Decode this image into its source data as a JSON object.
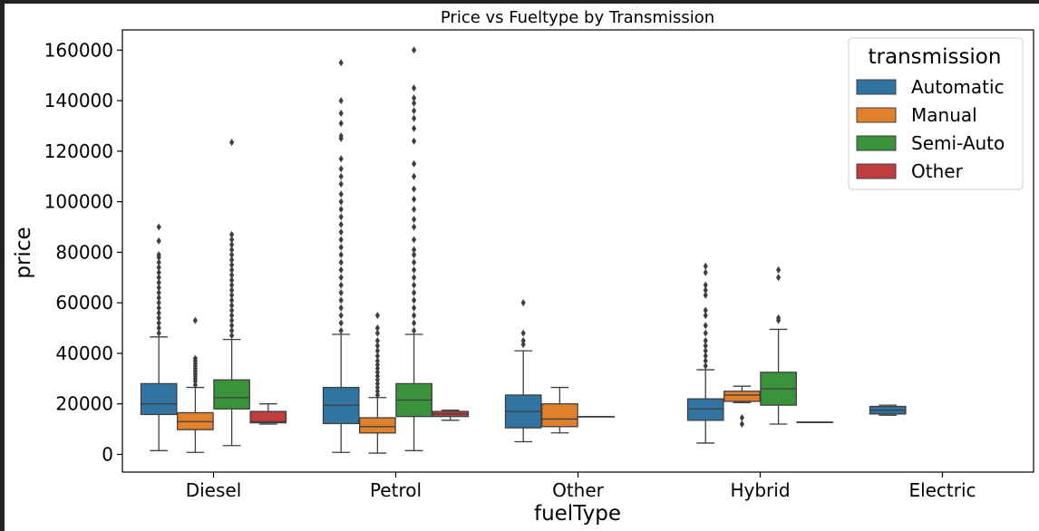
{
  "chart_data": {
    "type": "box",
    "title": "Price vs Fueltype by Transmission",
    "xlabel": "fuelType",
    "ylabel": "price",
    "ylim": [
      -7000,
      168000
    ],
    "yticks": [
      0,
      20000,
      40000,
      60000,
      80000,
      100000,
      120000,
      140000,
      160000
    ],
    "categories": [
      "Diesel",
      "Petrol",
      "Other",
      "Hybrid",
      "Electric"
    ],
    "legend": {
      "title": "transmission",
      "position": "top-right"
    },
    "series": [
      {
        "name": "Automatic",
        "color": "#3274a1",
        "boxes": [
          {
            "q1": 15800,
            "median": 20000,
            "q3": 28000,
            "whislo": 1500,
            "whishi": 46500,
            "outliers": [
              48000,
              50000,
              52000,
              54000,
              56000,
              58000,
              60000,
              62000,
              64000,
              66000,
              68000,
              70000,
              72000,
              74000,
              76000,
              78000,
              79000,
              84500,
              90000
            ]
          },
          {
            "q1": 12200,
            "median": 19500,
            "q3": 26500,
            "whislo": 800,
            "whishi": 47500,
            "outliers": [
              49000,
              52000,
              55000,
              58000,
              61000,
              64000,
              67000,
              70000,
              73000,
              76000,
              79000,
              82000,
              85000,
              88000,
              91000,
              94000,
              97000,
              100000,
              103000,
              107000,
              110000,
              113000,
              117000,
              125000,
              126000,
              131000,
              135000,
              140000,
              155000
            ]
          },
          {
            "q1": 10500,
            "median": 17000,
            "q3": 23500,
            "whislo": 5000,
            "whishi": 41000,
            "outliers": [
              43500,
              45000,
              48000,
              60000
            ]
          },
          {
            "q1": 13500,
            "median": 18000,
            "q3": 22000,
            "whislo": 4500,
            "whishi": 33500,
            "outliers": [
              35000,
              37000,
              39000,
              41000,
              43000,
              45000,
              48000,
              51000,
              55000,
              57000,
              63000,
              65000,
              67000,
              72000,
              74500
            ]
          },
          {
            "q1": 16000,
            "median": 17500,
            "q3": 19000,
            "whislo": 15500,
            "whishi": 19500,
            "outliers": []
          }
        ]
      },
      {
        "name": "Manual",
        "color": "#e1812c",
        "boxes": [
          {
            "q1": 9800,
            "median": 13000,
            "q3": 16500,
            "whislo": 800,
            "whishi": 26500,
            "outliers": [
              27500,
              29000,
              30000,
              31000,
              32000,
              33000,
              34000,
              35000,
              36000,
              37000,
              38000,
              53000
            ]
          },
          {
            "q1": 8500,
            "median": 11000,
            "q3": 14500,
            "whislo": 500,
            "whishi": 22500,
            "outliers": [
              23500,
              25000,
              26500,
              28000,
              29500,
              31000,
              32500,
              34000,
              35500,
              37000,
              39000,
              41000,
              43000,
              45000,
              48000,
              50000,
              55000
            ]
          },
          {
            "q1": 11000,
            "median": 14000,
            "q3": 20000,
            "whislo": 8500,
            "whishi": 26500,
            "outliers": []
          },
          {
            "q1": 21000,
            "median": 23500,
            "q3": 25000,
            "whislo": 20500,
            "whishi": 27000,
            "outliers": [
              12000,
              14500
            ]
          },
          null
        ]
      },
      {
        "name": "Semi-Auto",
        "color": "#3a923a",
        "boxes": [
          {
            "q1": 18000,
            "median": 22500,
            "q3": 29500,
            "whislo": 3500,
            "whishi": 45500,
            "outliers": [
              47000,
              49000,
              51000,
              53000,
              55000,
              57000,
              59000,
              61000,
              63000,
              65000,
              67000,
              69000,
              71000,
              73000,
              75000,
              77000,
              79000,
              81000,
              83000,
              85000,
              87000,
              123500
            ]
          },
          {
            "q1": 15000,
            "median": 21500,
            "q3": 28000,
            "whislo": 1500,
            "whishi": 47500,
            "outliers": [
              49000,
              52000,
              55000,
              58000,
              61000,
              64000,
              67000,
              70000,
              73000,
              76000,
              79000,
              81000,
              85000,
              90000,
              93000,
              97000,
              101000,
              105000,
              110000,
              115000,
              124000,
              129000,
              133000,
              136000,
              139000,
              141000,
              145000,
              160000
            ]
          },
          {
            "q1": 15000,
            "median": 15000,
            "q3": 15000,
            "whislo": 15000,
            "whishi": 15000,
            "outliers": []
          },
          {
            "q1": 19500,
            "median": 26000,
            "q3": 32500,
            "whislo": 12000,
            "whishi": 49500,
            "outliers": [
              53000,
              54000,
              70000,
              73000
            ]
          },
          null
        ]
      },
      {
        "name": "Other",
        "color": "#c03d3e",
        "boxes": [
          {
            "q1": 12500,
            "median": 13000,
            "q3": 17000,
            "whislo": 12000,
            "whishi": 20000,
            "outliers": []
          },
          {
            "q1": 15000,
            "median": 16000,
            "q3": 17000,
            "whislo": 13500,
            "whishi": 17500,
            "outliers": []
          },
          null,
          {
            "q1": 12800,
            "median": 12800,
            "q3": 12800,
            "whislo": 12800,
            "whishi": 12800,
            "outliers": []
          },
          null
        ]
      }
    ]
  }
}
